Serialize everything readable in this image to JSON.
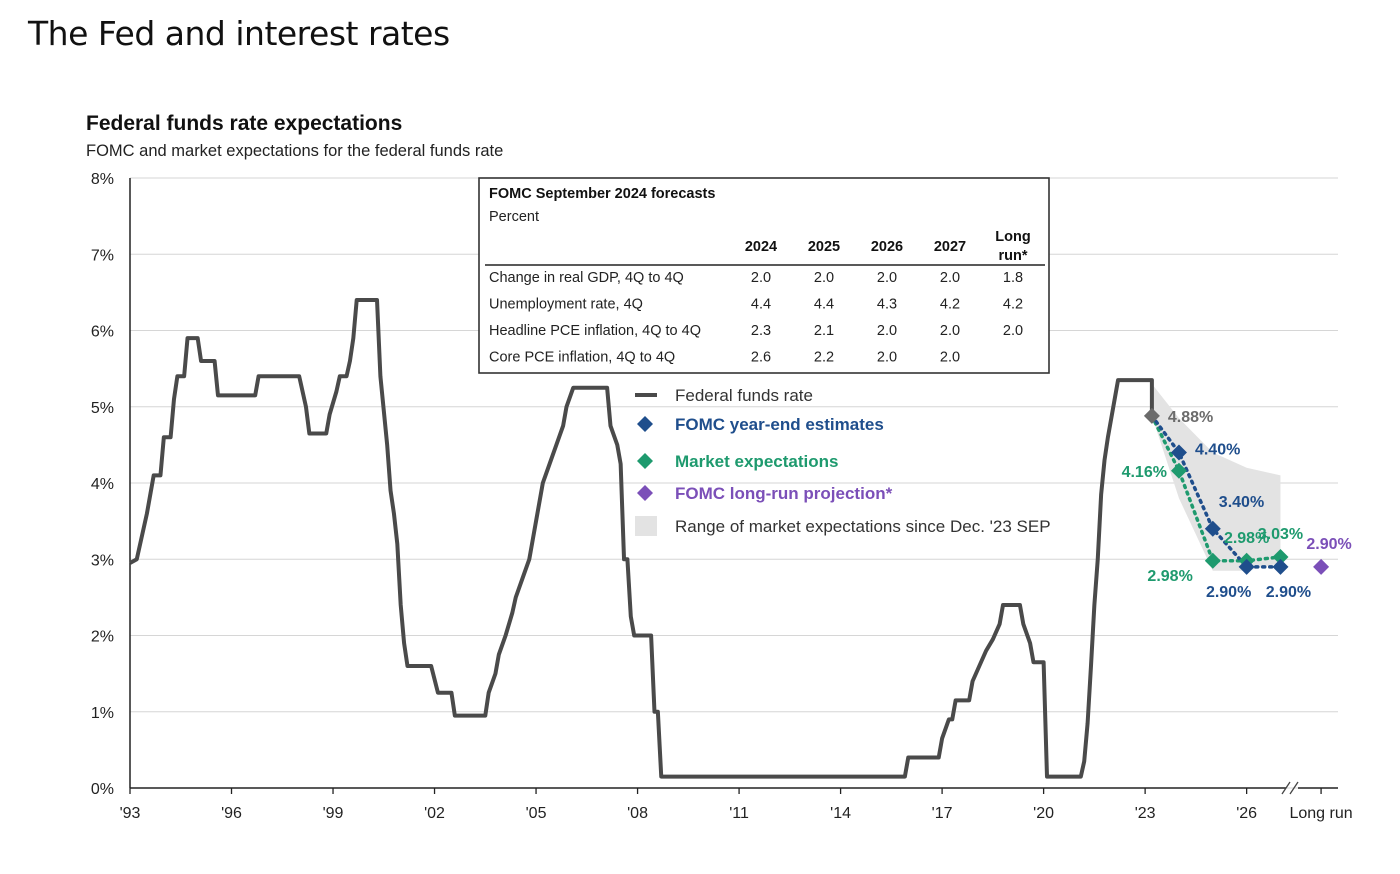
{
  "page": {
    "title": "The Fed and interest rates"
  },
  "chart_data": {
    "type": "line",
    "title": "Federal funds rate expectations",
    "subtitle": "FOMC and market expectations for the federal funds rate",
    "xlabel": "",
    "ylabel": "",
    "ylim": [
      0,
      8
    ],
    "xlim": [
      1993,
      2028.7
    ],
    "grid": "horizontal",
    "y_ticks": [
      {
        "v": 0,
        "label": "0%"
      },
      {
        "v": 1,
        "label": "1%"
      },
      {
        "v": 2,
        "label": "2%"
      },
      {
        "v": 3,
        "label": "3%"
      },
      {
        "v": 4,
        "label": "4%"
      },
      {
        "v": 5,
        "label": "5%"
      },
      {
        "v": 6,
        "label": "6%"
      },
      {
        "v": 7,
        "label": "7%"
      },
      {
        "v": 8,
        "label": "8%"
      }
    ],
    "x_ticks": [
      {
        "v": 1993,
        "label": "'93"
      },
      {
        "v": 1996,
        "label": "'96"
      },
      {
        "v": 1999,
        "label": "'99"
      },
      {
        "v": 2002,
        "label": "'02"
      },
      {
        "v": 2005,
        "label": "'05"
      },
      {
        "v": 2008,
        "label": "'08"
      },
      {
        "v": 2011,
        "label": "'11"
      },
      {
        "v": 2014,
        "label": "'14"
      },
      {
        "v": 2017,
        "label": "'17"
      },
      {
        "v": 2020,
        "label": "'20"
      },
      {
        "v": 2023,
        "label": "'23"
      },
      {
        "v": 2026,
        "label": "'26"
      },
      {
        "v": 2028.2,
        "label": "Long run"
      }
    ],
    "axis_break": "//",
    "series": [
      {
        "name": "Federal funds rate",
        "color": "#4a4a4a",
        "points": [
          [
            1993.0,
            2.95
          ],
          [
            1993.2,
            3.0
          ],
          [
            1993.5,
            3.6
          ],
          [
            1993.7,
            4.1
          ],
          [
            1993.9,
            4.1
          ],
          [
            1994.0,
            4.6
          ],
          [
            1994.2,
            4.6
          ],
          [
            1994.3,
            5.1
          ],
          [
            1994.4,
            5.4
          ],
          [
            1994.6,
            5.4
          ],
          [
            1994.7,
            5.9
          ],
          [
            1995.0,
            5.9
          ],
          [
            1995.1,
            5.6
          ],
          [
            1995.5,
            5.6
          ],
          [
            1995.6,
            5.15
          ],
          [
            1996.7,
            5.15
          ],
          [
            1996.8,
            5.4
          ],
          [
            1998.0,
            5.4
          ],
          [
            1998.2,
            5.0
          ],
          [
            1998.3,
            4.65
          ],
          [
            1998.8,
            4.65
          ],
          [
            1998.9,
            4.9
          ],
          [
            1999.1,
            5.2
          ],
          [
            1999.2,
            5.4
          ],
          [
            1999.4,
            5.4
          ],
          [
            1999.5,
            5.6
          ],
          [
            1999.6,
            5.9
          ],
          [
            1999.7,
            6.4
          ],
          [
            2000.3,
            6.4
          ],
          [
            2000.4,
            5.4
          ],
          [
            2000.6,
            4.5
          ],
          [
            2000.7,
            3.9
          ],
          [
            2000.8,
            3.6
          ],
          [
            2000.9,
            3.2
          ],
          [
            2001.0,
            2.4
          ],
          [
            2001.1,
            1.9
          ],
          [
            2001.2,
            1.6
          ],
          [
            2001.9,
            1.6
          ],
          [
            2002.1,
            1.25
          ],
          [
            2002.5,
            1.25
          ],
          [
            2002.6,
            0.95
          ],
          [
            2003.5,
            0.95
          ],
          [
            2003.6,
            1.25
          ],
          [
            2003.8,
            1.5
          ],
          [
            2003.9,
            1.75
          ],
          [
            2004.1,
            2.0
          ],
          [
            2004.3,
            2.3
          ],
          [
            2004.4,
            2.5
          ],
          [
            2004.6,
            2.75
          ],
          [
            2004.8,
            3.0
          ],
          [
            2004.9,
            3.25
          ],
          [
            2005.0,
            3.5
          ],
          [
            2005.2,
            4.0
          ],
          [
            2005.4,
            4.25
          ],
          [
            2005.6,
            4.5
          ],
          [
            2005.8,
            4.75
          ],
          [
            2005.9,
            5.0
          ],
          [
            2006.1,
            5.25
          ],
          [
            2006.2,
            5.25
          ],
          [
            2007.1,
            5.25
          ],
          [
            2007.2,
            4.75
          ],
          [
            2007.4,
            4.5
          ],
          [
            2007.5,
            4.25
          ],
          [
            2007.6,
            3.0
          ],
          [
            2007.7,
            3.0
          ],
          [
            2007.8,
            2.25
          ],
          [
            2007.9,
            2.0
          ],
          [
            2008.4,
            2.0
          ],
          [
            2008.5,
            1.0
          ],
          [
            2008.6,
            1.0
          ],
          [
            2008.7,
            0.15
          ],
          [
            2015.9,
            0.15
          ],
          [
            2016.0,
            0.4
          ],
          [
            2016.9,
            0.4
          ],
          [
            2017.0,
            0.65
          ],
          [
            2017.2,
            0.9
          ],
          [
            2017.3,
            0.9
          ],
          [
            2017.4,
            1.15
          ],
          [
            2017.8,
            1.15
          ],
          [
            2017.9,
            1.4
          ],
          [
            2018.1,
            1.6
          ],
          [
            2018.3,
            1.8
          ],
          [
            2018.5,
            1.95
          ],
          [
            2018.7,
            2.15
          ],
          [
            2018.8,
            2.4
          ],
          [
            2019.3,
            2.4
          ],
          [
            2019.4,
            2.15
          ],
          [
            2019.6,
            1.9
          ],
          [
            2019.7,
            1.65
          ],
          [
            2020.0,
            1.65
          ],
          [
            2020.1,
            0.15
          ],
          [
            2021.1,
            0.15
          ],
          [
            2021.2,
            0.35
          ],
          [
            2021.3,
            0.85
          ],
          [
            2021.4,
            1.6
          ],
          [
            2021.5,
            2.4
          ],
          [
            2021.6,
            3.0
          ],
          [
            2021.7,
            3.85
          ],
          [
            2021.8,
            4.3
          ],
          [
            2021.9,
            4.6
          ],
          [
            2022.0,
            4.85
          ],
          [
            2022.1,
            5.1
          ],
          [
            2022.2,
            5.35
          ],
          [
            2023.2,
            5.35
          ],
          [
            2023.2,
            4.88
          ]
        ]
      },
      {
        "name": "FOMC year-end estimates",
        "color": "#1f4e8c",
        "points": [
          [
            2024,
            4.4
          ],
          [
            2025,
            3.4
          ],
          [
            2026,
            2.9
          ],
          [
            2027,
            2.9
          ]
        ]
      },
      {
        "name": "Market expectations",
        "color": "#1e9a6e",
        "points": [
          [
            2024,
            4.16
          ],
          [
            2025,
            2.98
          ],
          [
            2026,
            2.98
          ],
          [
            2027,
            3.03
          ]
        ]
      },
      {
        "name": "FOMC long-run projection*",
        "color": "#7b4fb8",
        "points": [
          [
            2028.2,
            2.9
          ]
        ]
      },
      {
        "name": "Range of market expectations since Dec. '23 SEP",
        "color": "#e3e3e3",
        "upper": [
          [
            2023.2,
            5.3
          ],
          [
            2024.0,
            4.85
          ],
          [
            2025.0,
            4.4
          ],
          [
            2026.0,
            4.2
          ],
          [
            2027.0,
            4.1
          ]
        ],
        "lower": [
          [
            2027.0,
            2.95
          ],
          [
            2026.0,
            2.85
          ],
          [
            2025.0,
            2.85
          ],
          [
            2024.0,
            3.8
          ],
          [
            2023.2,
            4.88
          ]
        ]
      }
    ],
    "current_point": {
      "x": 2023.2,
      "y": 4.88,
      "label": "4.88%",
      "color": "#6b6b6b"
    },
    "point_labels": [
      {
        "series": "FOMC year-end estimates",
        "x": 2024,
        "y": 4.4,
        "label": "4.40%",
        "pos": "right"
      },
      {
        "series": "FOMC year-end estimates",
        "x": 2025,
        "y": 3.4,
        "label": "3.40%",
        "pos": "up-right"
      },
      {
        "series": "FOMC year-end estimates",
        "x": 2026,
        "y": 2.9,
        "label": "2.90%",
        "pos": "below"
      },
      {
        "series": "FOMC year-end estimates",
        "x": 2027,
        "y": 2.9,
        "label": "2.90%",
        "pos": "below"
      },
      {
        "series": "Market expectations",
        "x": 2024,
        "y": 4.16,
        "label": "4.16%",
        "pos": "left"
      },
      {
        "series": "Market expectations",
        "x": 2025,
        "y": 2.98,
        "label": "2.98%",
        "pos": "below-left"
      },
      {
        "series": "Market expectations",
        "x": 2026,
        "y": 2.98,
        "label": "2.98%",
        "pos": "above"
      },
      {
        "series": "Market expectations",
        "x": 2027,
        "y": 3.03,
        "label": "3.03%",
        "pos": "above"
      },
      {
        "series": "FOMC long-run projection*",
        "x": 2028.2,
        "y": 2.9,
        "label": "2.90%",
        "pos": "above"
      }
    ],
    "legend": {
      "placement": "center",
      "items": [
        {
          "label": "Federal funds rate",
          "marker": "line",
          "color": "#4a4a4a",
          "text_color": "#333333"
        },
        {
          "label": "FOMC year-end estimates",
          "marker": "diamond",
          "color": "#1f4e8c",
          "text_color": "#1f4e8c"
        },
        {
          "label": "Market expectations",
          "marker": "diamond",
          "color": "#1e9a6e",
          "text_color": "#1e9a6e"
        },
        {
          "label": "FOMC long-run projection*",
          "marker": "diamond",
          "color": "#7b4fb8",
          "text_color": "#7b4fb8"
        },
        {
          "label": "Range of market expectations since Dec. '23 SEP",
          "marker": "square",
          "color": "#e3e3e3",
          "text_color": "#333333"
        }
      ]
    },
    "table": {
      "title": "FOMC September 2024 forecasts",
      "subtitle": "Percent",
      "columns": [
        "2024",
        "2025",
        "2026",
        "2027",
        "Long run*"
      ],
      "rows": [
        {
          "label": "Change in real GDP, 4Q to 4Q",
          "values": [
            "2.0",
            "2.0",
            "2.0",
            "2.0",
            "1.8"
          ]
        },
        {
          "label": "Unemployment rate, 4Q",
          "values": [
            "4.4",
            "4.4",
            "4.3",
            "4.2",
            "4.2"
          ]
        },
        {
          "label": "Headline PCE inflation, 4Q to 4Q",
          "values": [
            "2.3",
            "2.1",
            "2.0",
            "2.0",
            "2.0"
          ]
        },
        {
          "label": "Core PCE inflation, 4Q to 4Q",
          "values": [
            "2.6",
            "2.2",
            "2.0",
            "2.0",
            ""
          ]
        }
      ]
    }
  }
}
